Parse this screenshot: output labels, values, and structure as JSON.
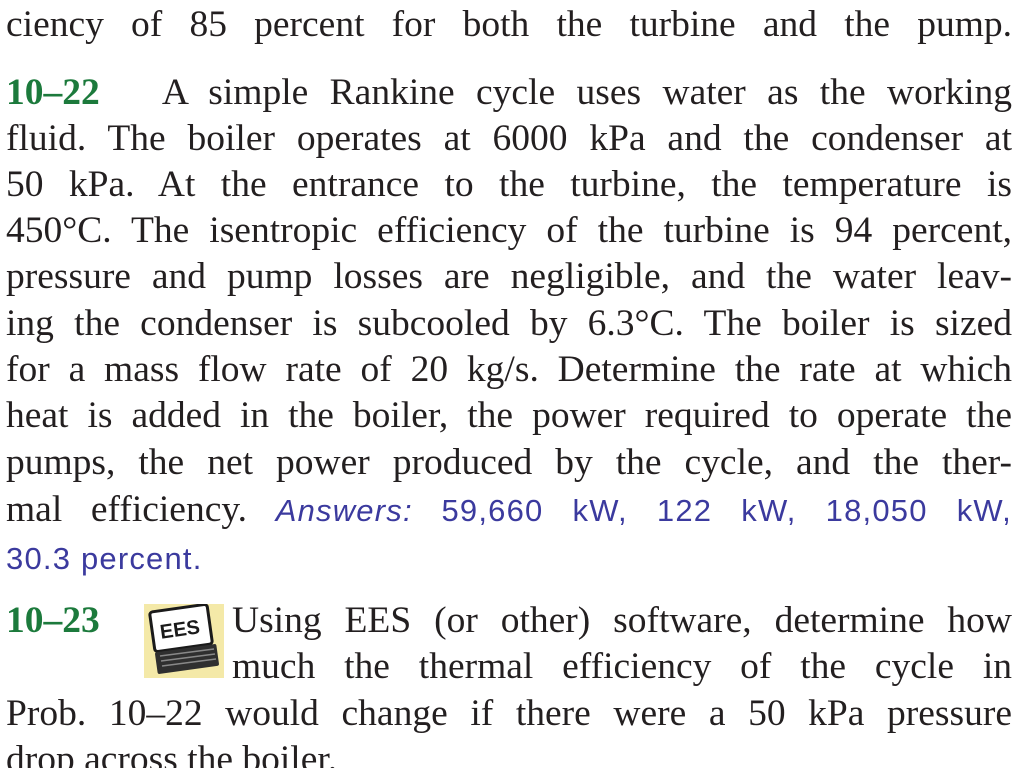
{
  "top_line": "ciency of 85 percent for both the turbine and the pump.",
  "problem_10_22": {
    "number": "10–22",
    "lines": [
      "A simple Rankine cycle uses water as the working",
      "fluid. The boiler operates at 6000 kPa and the condenser at",
      "50 kPa. At the entrance to the turbine, the temperature is",
      "450°C. The isentropic efficiency of the turbine is 94 percent,",
      "pressure and pump losses are negligible, and the water leav-",
      "ing the condenser is subcooled by 6.3°C. The boiler is sized",
      "for a mass flow rate of 20 kg/s. Determine the rate at which",
      "heat is added in the boiler, the power required to operate the",
      "pumps, the net power produced by the cycle, and the ther-"
    ],
    "last_line_text": "mal efficiency.",
    "answers_label": "Answers:",
    "answers_values": "59,660 kW, 122 kW, 18,050 kW,",
    "answers_cont": "30.3 percent."
  },
  "problem_10_23": {
    "number": "10–23",
    "icon": "ees-software-icon",
    "icon_text": "EES",
    "lines": [
      "Using EES (or other) software, determine how",
      "much the thermal efficiency of the cycle in",
      "Prob. 10–22 would change if there were a 50 kPa pressure",
      "drop across the boiler."
    ]
  },
  "colors": {
    "problem_number": "#1c7a3c",
    "answers": "#3b3a9e",
    "text": "#231f20"
  }
}
